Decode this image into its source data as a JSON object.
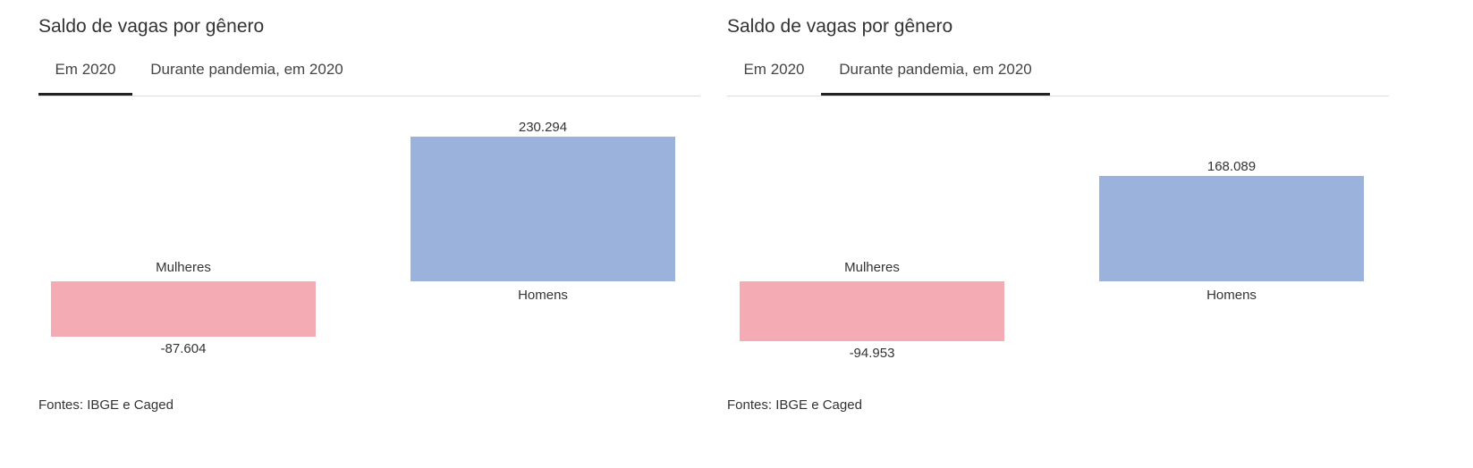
{
  "panels": [
    {
      "title": "Saldo de vagas por gênero",
      "tabs": [
        {
          "label": "Em 2020",
          "active": true
        },
        {
          "label": "Durante pandemia, em 2020",
          "active": false
        }
      ],
      "source": "Fontes: IBGE e Caged"
    },
    {
      "title": "Saldo de vagas por gênero",
      "tabs": [
        {
          "label": "Em 2020",
          "active": false
        },
        {
          "label": "Durante pandemia, em 2020",
          "active": true
        }
      ],
      "source": "Fontes: IBGE e Caged"
    }
  ],
  "chart_data": [
    {
      "type": "bar",
      "title": "Saldo de vagas por gênero",
      "categories": [
        "Mulheres",
        "Homens"
      ],
      "values": [
        -87604,
        230294
      ],
      "value_labels": [
        "-87.604",
        "230.294"
      ],
      "colors": [
        "#f4abb3",
        "#9bb2dd"
      ],
      "ylim": [
        -94953,
        230294
      ]
    },
    {
      "type": "bar",
      "title": "Saldo de vagas por gênero",
      "categories": [
        "Mulheres",
        "Homens"
      ],
      "values": [
        -94953,
        168089
      ],
      "value_labels": [
        "-94.953",
        "168.089"
      ],
      "colors": [
        "#f4abb3",
        "#9bb2dd"
      ],
      "ylim": [
        -94953,
        230294
      ]
    }
  ]
}
